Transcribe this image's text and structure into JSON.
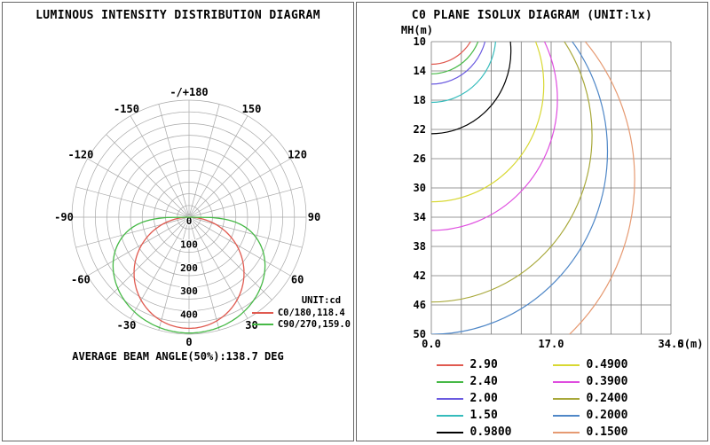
{
  "page": {
    "background": "#ffffff"
  },
  "chart_data": [
    {
      "type": "line",
      "coordinate": "polar",
      "title": "LUMINOUS INTENSITY DISTRIBUTION DIAGRAM",
      "legend_unit": "UNIT:cd",
      "footer": "AVERAGE BEAM ANGLE(50%):138.7 DEG",
      "r_axis": {
        "unit": "cd",
        "max": 500,
        "ring_step": 50,
        "tick_labels": [
          0,
          100,
          200,
          300,
          400
        ]
      },
      "spoke_step_deg": 15,
      "angle_labels": [
        {
          "deg": 180,
          "text": "-/+180"
        },
        {
          "deg": -150,
          "text": "-150"
        },
        {
          "deg": 150,
          "text": "150"
        },
        {
          "deg": -120,
          "text": "-120"
        },
        {
          "deg": 120,
          "text": "120"
        },
        {
          "deg": -90,
          "text": "-90"
        },
        {
          "deg": 90,
          "text": "90"
        },
        {
          "deg": -60,
          "text": "-60"
        },
        {
          "deg": 60,
          "text": "60"
        },
        {
          "deg": -30,
          "text": "-30"
        },
        {
          "deg": 30,
          "text": "30"
        },
        {
          "deg": 0,
          "text": "0"
        }
      ],
      "series": [
        {
          "key": "c0-180",
          "legend_label": "C0/180,118.4",
          "beam_angle_deg": 118.4,
          "peak_cd": 475,
          "color": "#e05a50"
        },
        {
          "key": "c90-270",
          "legend_label": "C90/270,159.0",
          "beam_angle_deg": 159.0,
          "peak_cd": 495,
          "color": "#46b946"
        }
      ]
    },
    {
      "type": "line",
      "coordinate": "cartesian",
      "title": "C0 PLANE ISOLUX DIAGRAM (UNIT:lx)",
      "x_axis": {
        "label": "S(m)",
        "min": 0,
        "max": 34,
        "ticks": [
          "0.0",
          "17.0",
          "34.0"
        ],
        "divisions": 8
      },
      "y_axis": {
        "label": "MH(m)",
        "min": 10,
        "max": 50,
        "ticks": [
          10,
          14,
          18,
          22,
          26,
          30,
          34,
          38,
          42,
          46,
          50
        ]
      },
      "contour_model": "isolux circles passing through lamp position (S=0, MH=0); radius_m = MH where contour crosses S=0",
      "contours": [
        {
          "lux_label": "2.90",
          "lux": 2.9,
          "radius_m": 13.1,
          "color": "#e05a50"
        },
        {
          "lux_label": "2.40",
          "lux": 2.4,
          "radius_m": 14.4,
          "color": "#46b946"
        },
        {
          "lux_label": "2.00",
          "lux": 2.0,
          "radius_m": 15.8,
          "color": "#6a5ae0"
        },
        {
          "lux_label": "1.50",
          "lux": 1.5,
          "radius_m": 18.3,
          "color": "#35bcbc"
        },
        {
          "lux_label": "0.9800",
          "lux": 0.98,
          "radius_m": 22.6,
          "color": "#000000"
        },
        {
          "lux_label": "0.4900",
          "lux": 0.49,
          "radius_m": 31.9,
          "color": "#d8d832"
        },
        {
          "lux_label": "0.3900",
          "lux": 0.39,
          "radius_m": 35.8,
          "color": "#df4ddf"
        },
        {
          "lux_label": "0.2400",
          "lux": 0.24,
          "radius_m": 45.6,
          "color": "#a8a83a"
        },
        {
          "lux_label": "0.2000",
          "lux": 0.2,
          "radius_m": 50.0,
          "color": "#4f87c7"
        },
        {
          "lux_label": "0.1500",
          "lux": 0.15,
          "radius_m": 57.7,
          "color": "#e69a72"
        }
      ]
    }
  ]
}
